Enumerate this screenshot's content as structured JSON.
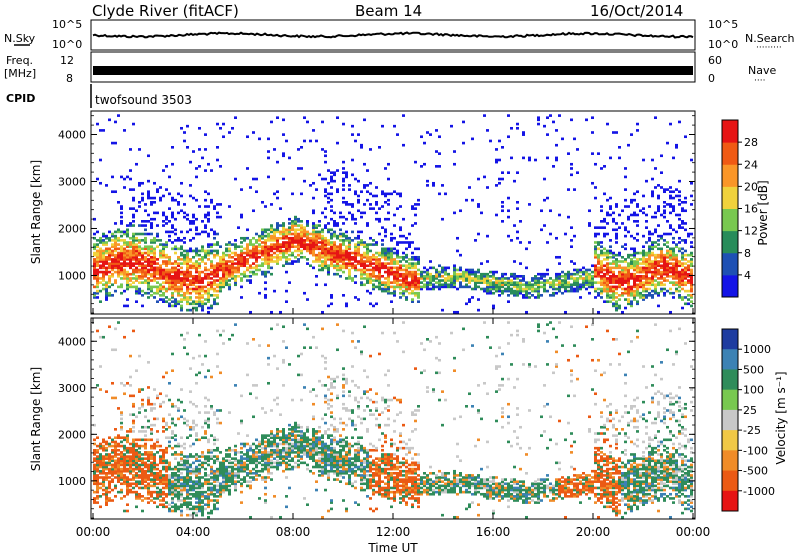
{
  "header": {
    "station": "Clyde River (fitACF)",
    "beam": "Beam 14",
    "date": "16/Oct/2014"
  },
  "noise_panel": {
    "left_label": "N.Sky",
    "right_label": "N.Search",
    "ticks_left": [
      "10^5",
      "10^0"
    ],
    "ticks_right": [
      "10^5",
      "10^0"
    ],
    "legend_dots": "·········"
  },
  "freq_panel": {
    "left_label_line1": "Freq.",
    "left_label_line2": "[MHz]",
    "right_label": "Nave",
    "ticks_left": [
      "12",
      "8"
    ],
    "ticks_right": [
      "60",
      "0"
    ],
    "legend_dots": "····"
  },
  "cpid": {
    "label": "CPID",
    "value": "twofsound 3503"
  },
  "chart_data": [
    {
      "type": "heatmap",
      "parameter": "Power",
      "ylabel": "Slant Range [km]",
      "xlabel": "",
      "ylim": [
        180,
        4500
      ],
      "yticks": [
        "1000",
        "2000",
        "3000",
        "4000"
      ],
      "colorbar_label": "Power [dB]",
      "colorbar_ticks": [
        "4",
        "8",
        "12",
        "16",
        "20",
        "24",
        "28"
      ],
      "colorbar_colors": [
        "#1414e6",
        "#1e50b4",
        "#288c5a",
        "#78c850",
        "#f0d23c",
        "#fa9628",
        "#f05a14",
        "#e61414"
      ]
    },
    {
      "type": "heatmap",
      "parameter": "Velocity",
      "ylabel": "Slant Range [km]",
      "xlabel": "Time UT",
      "ylim": [
        180,
        4500
      ],
      "yticks": [
        "1000",
        "2000",
        "3000",
        "4000"
      ],
      "xticks": [
        "00:00",
        "04:00",
        "08:00",
        "12:00",
        "16:00",
        "20:00",
        "00:00"
      ],
      "colorbar_label": "Velocity [m s⁻¹]",
      "colorbar_ticks": [
        "1000",
        "500",
        "100",
        "25",
        "-25",
        "-100",
        "-500",
        "-1000"
      ],
      "colorbar_colors": [
        "#1e3ca0",
        "#3c82b4",
        "#2f8c5a",
        "#78c850",
        "#c8c8c8",
        "#f0c846",
        "#f08c28",
        "#eb5a14",
        "#e61414"
      ]
    }
  ]
}
